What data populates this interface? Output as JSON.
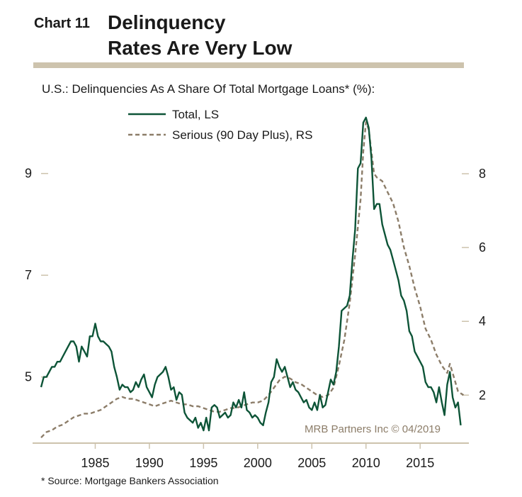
{
  "header": {
    "chart_number": "Chart 11",
    "title_line1": "Delinquency",
    "title_line2": "Rates Are Very Low"
  },
  "subtitle": "U.S.: Delinquencies As A Share Of Total Mortgage Loans* (%):",
  "watermark": "MRB Partners Inc © 04/2019",
  "footnote": "* Source: Mortgage Bankers Association",
  "colors": {
    "total": "#0d5437",
    "serious": "#8c7d69",
    "rule": "#cdc3ad",
    "axis": "#cdc3ad"
  },
  "chart_data": {
    "type": "line",
    "legend": {
      "position": "top-center",
      "entries": [
        "Total, LS",
        "Serious (90 Day Plus), RS"
      ]
    },
    "x_ticks": [
      "1985",
      "1990",
      "1995",
      "2000",
      "2005",
      "2010",
      "2015"
    ],
    "x_range": [
      1980,
      2019.5
    ],
    "y_left": {
      "ticks": [
        "5",
        "7",
        "9"
      ],
      "range": [
        3.7,
        10.25
      ]
    },
    "y_right": {
      "ticks": [
        "2",
        "4",
        "6",
        "8"
      ],
      "range": [
        0.7,
        9.73
      ]
    },
    "grid": false,
    "series": [
      {
        "name": "Total, LS",
        "axis": "left",
        "style": "solid",
        "points": [
          [
            1980.0,
            4.8
          ],
          [
            1980.25,
            5.0
          ],
          [
            1980.5,
            5.0
          ],
          [
            1980.75,
            5.1
          ],
          [
            1981.0,
            5.2
          ],
          [
            1981.25,
            5.2
          ],
          [
            1981.5,
            5.3
          ],
          [
            1981.75,
            5.3
          ],
          [
            1982.0,
            5.4
          ],
          [
            1982.25,
            5.5
          ],
          [
            1982.5,
            5.6
          ],
          [
            1982.75,
            5.7
          ],
          [
            1983.0,
            5.7
          ],
          [
            1983.25,
            5.6
          ],
          [
            1983.5,
            5.3
          ],
          [
            1983.75,
            5.6
          ],
          [
            1984.0,
            5.5
          ],
          [
            1984.25,
            5.4
          ],
          [
            1984.5,
            5.8
          ],
          [
            1984.75,
            5.8
          ],
          [
            1985.0,
            6.05
          ],
          [
            1985.25,
            5.8
          ],
          [
            1985.5,
            5.7
          ],
          [
            1985.75,
            5.7
          ],
          [
            1986.0,
            5.65
          ],
          [
            1986.25,
            5.6
          ],
          [
            1986.5,
            5.5
          ],
          [
            1986.75,
            5.2
          ],
          [
            1987.0,
            5.0
          ],
          [
            1987.25,
            4.75
          ],
          [
            1987.5,
            4.85
          ],
          [
            1987.75,
            4.8
          ],
          [
            1988.0,
            4.8
          ],
          [
            1988.25,
            4.7
          ],
          [
            1988.5,
            4.75
          ],
          [
            1988.75,
            4.9
          ],
          [
            1989.0,
            4.8
          ],
          [
            1989.25,
            4.95
          ],
          [
            1989.5,
            5.05
          ],
          [
            1989.75,
            4.8
          ],
          [
            1990.0,
            4.7
          ],
          [
            1990.25,
            4.6
          ],
          [
            1990.5,
            4.85
          ],
          [
            1990.75,
            5.0
          ],
          [
            1991.0,
            5.05
          ],
          [
            1991.25,
            5.1
          ],
          [
            1991.5,
            5.2
          ],
          [
            1991.75,
            5.0
          ],
          [
            1992.0,
            4.75
          ],
          [
            1992.25,
            4.8
          ],
          [
            1992.5,
            4.55
          ],
          [
            1992.75,
            4.7
          ],
          [
            1993.0,
            4.65
          ],
          [
            1993.25,
            4.3
          ],
          [
            1993.5,
            4.2
          ],
          [
            1993.75,
            4.15
          ],
          [
            1994.0,
            4.1
          ],
          [
            1994.25,
            4.2
          ],
          [
            1994.5,
            4.0
          ],
          [
            1994.75,
            4.1
          ],
          [
            1995.0,
            3.95
          ],
          [
            1995.25,
            4.2
          ],
          [
            1995.5,
            3.95
          ],
          [
            1995.75,
            4.4
          ],
          [
            1996.0,
            4.45
          ],
          [
            1996.25,
            4.4
          ],
          [
            1996.5,
            4.2
          ],
          [
            1996.75,
            4.25
          ],
          [
            1997.0,
            4.3
          ],
          [
            1997.25,
            4.2
          ],
          [
            1997.5,
            4.25
          ],
          [
            1997.75,
            4.5
          ],
          [
            1998.0,
            4.4
          ],
          [
            1998.25,
            4.55
          ],
          [
            1998.5,
            4.4
          ],
          [
            1998.75,
            4.7
          ],
          [
            1999.0,
            4.35
          ],
          [
            1999.25,
            4.3
          ],
          [
            1999.5,
            4.2
          ],
          [
            1999.75,
            4.25
          ],
          [
            2000.0,
            4.2
          ],
          [
            2000.25,
            4.1
          ],
          [
            2000.5,
            4.05
          ],
          [
            2000.75,
            4.3
          ],
          [
            2001.0,
            4.5
          ],
          [
            2001.25,
            4.9
          ],
          [
            2001.5,
            5.0
          ],
          [
            2001.75,
            5.35
          ],
          [
            2002.0,
            5.2
          ],
          [
            2002.25,
            5.1
          ],
          [
            2002.5,
            5.2
          ],
          [
            2002.75,
            5.0
          ],
          [
            2003.0,
            4.8
          ],
          [
            2003.25,
            4.9
          ],
          [
            2003.5,
            4.75
          ],
          [
            2003.75,
            4.7
          ],
          [
            2004.0,
            4.6
          ],
          [
            2004.25,
            4.5
          ],
          [
            2004.5,
            4.55
          ],
          [
            2004.75,
            4.4
          ],
          [
            2005.0,
            4.35
          ],
          [
            2005.25,
            4.5
          ],
          [
            2005.5,
            4.35
          ],
          [
            2005.75,
            4.65
          ],
          [
            2006.0,
            4.4
          ],
          [
            2006.25,
            4.45
          ],
          [
            2006.5,
            4.7
          ],
          [
            2006.75,
            4.95
          ],
          [
            2007.0,
            4.85
          ],
          [
            2007.25,
            5.1
          ],
          [
            2007.5,
            5.6
          ],
          [
            2007.75,
            6.3
          ],
          [
            2008.0,
            6.35
          ],
          [
            2008.25,
            6.4
          ],
          [
            2008.5,
            6.6
          ],
          [
            2008.75,
            7.3
          ],
          [
            2009.0,
            7.9
          ],
          [
            2009.25,
            9.1
          ],
          [
            2009.5,
            9.2
          ],
          [
            2009.75,
            10.0
          ],
          [
            2010.0,
            10.1
          ],
          [
            2010.25,
            9.9
          ],
          [
            2010.5,
            9.3
          ],
          [
            2010.75,
            8.3
          ],
          [
            2011.0,
            8.4
          ],
          [
            2011.25,
            8.4
          ],
          [
            2011.5,
            8.0
          ],
          [
            2011.75,
            7.8
          ],
          [
            2012.0,
            7.6
          ],
          [
            2012.25,
            7.5
          ],
          [
            2012.5,
            7.3
          ],
          [
            2012.75,
            7.1
          ],
          [
            2013.0,
            6.9
          ],
          [
            2013.25,
            6.6
          ],
          [
            2013.5,
            6.5
          ],
          [
            2013.75,
            6.3
          ],
          [
            2014.0,
            5.9
          ],
          [
            2014.25,
            5.8
          ],
          [
            2014.5,
            5.5
          ],
          [
            2014.75,
            5.4
          ],
          [
            2015.0,
            5.3
          ],
          [
            2015.25,
            5.2
          ],
          [
            2015.5,
            4.9
          ],
          [
            2015.75,
            4.8
          ],
          [
            2016.0,
            4.8
          ],
          [
            2016.25,
            4.7
          ],
          [
            2016.5,
            4.5
          ],
          [
            2016.75,
            4.8
          ],
          [
            2017.0,
            4.5
          ],
          [
            2017.25,
            4.25
          ],
          [
            2017.5,
            4.85
          ],
          [
            2017.75,
            5.1
          ],
          [
            2018.0,
            4.6
          ],
          [
            2018.25,
            4.4
          ],
          [
            2018.5,
            4.5
          ],
          [
            2018.75,
            4.05
          ]
        ]
      },
      {
        "name": "Serious (90 Day Plus), RS",
        "axis": "right",
        "style": "dashed",
        "points": [
          [
            1980.0,
            0.85
          ],
          [
            1980.5,
            1.0
          ],
          [
            1981.0,
            1.05
          ],
          [
            1981.5,
            1.15
          ],
          [
            1982.0,
            1.2
          ],
          [
            1982.5,
            1.3
          ],
          [
            1983.0,
            1.4
          ],
          [
            1983.5,
            1.45
          ],
          [
            1984.0,
            1.5
          ],
          [
            1984.5,
            1.5
          ],
          [
            1985.0,
            1.55
          ],
          [
            1985.5,
            1.6
          ],
          [
            1986.0,
            1.7
          ],
          [
            1986.5,
            1.8
          ],
          [
            1987.0,
            1.9
          ],
          [
            1987.5,
            1.95
          ],
          [
            1988.0,
            1.9
          ],
          [
            1988.5,
            1.9
          ],
          [
            1989.0,
            1.85
          ],
          [
            1989.5,
            1.8
          ],
          [
            1990.0,
            1.75
          ],
          [
            1990.5,
            1.7
          ],
          [
            1991.0,
            1.75
          ],
          [
            1991.5,
            1.8
          ],
          [
            1992.0,
            1.85
          ],
          [
            1992.5,
            1.8
          ],
          [
            1993.0,
            1.75
          ],
          [
            1993.5,
            1.75
          ],
          [
            1994.0,
            1.7
          ],
          [
            1994.5,
            1.7
          ],
          [
            1995.0,
            1.65
          ],
          [
            1995.5,
            1.6
          ],
          [
            1996.0,
            1.55
          ],
          [
            1996.5,
            1.55
          ],
          [
            1997.0,
            1.6
          ],
          [
            1997.5,
            1.65
          ],
          [
            1998.0,
            1.65
          ],
          [
            1998.5,
            1.7
          ],
          [
            1999.0,
            1.75
          ],
          [
            1999.5,
            1.8
          ],
          [
            2000.0,
            1.8
          ],
          [
            2000.5,
            1.85
          ],
          [
            2001.0,
            2.0
          ],
          [
            2001.5,
            2.2
          ],
          [
            2002.0,
            2.4
          ],
          [
            2002.5,
            2.5
          ],
          [
            2003.0,
            2.45
          ],
          [
            2003.5,
            2.35
          ],
          [
            2004.0,
            2.3
          ],
          [
            2004.5,
            2.2
          ],
          [
            2005.0,
            2.1
          ],
          [
            2005.5,
            2.0
          ],
          [
            2006.0,
            1.95
          ],
          [
            2006.5,
            2.0
          ],
          [
            2007.0,
            2.2
          ],
          [
            2007.5,
            2.8
          ],
          [
            2008.0,
            3.5
          ],
          [
            2008.5,
            4.5
          ],
          [
            2009.0,
            5.8
          ],
          [
            2009.5,
            7.3
          ],
          [
            2009.75,
            8.6
          ],
          [
            2010.0,
            9.4
          ],
          [
            2010.25,
            9.2
          ],
          [
            2010.5,
            8.6
          ],
          [
            2010.75,
            8.0
          ],
          [
            2011.0,
            7.9
          ],
          [
            2011.5,
            7.8
          ],
          [
            2012.0,
            7.5
          ],
          [
            2012.5,
            7.2
          ],
          [
            2013.0,
            6.7
          ],
          [
            2013.5,
            6.0
          ],
          [
            2014.0,
            5.5
          ],
          [
            2014.5,
            4.9
          ],
          [
            2015.0,
            4.4
          ],
          [
            2015.5,
            3.8
          ],
          [
            2016.0,
            3.5
          ],
          [
            2016.5,
            3.1
          ],
          [
            2017.0,
            2.8
          ],
          [
            2017.5,
            2.6
          ],
          [
            2017.75,
            2.85
          ],
          [
            2018.0,
            2.6
          ],
          [
            2018.5,
            2.1
          ],
          [
            2018.75,
            2.05
          ],
          [
            2019.0,
            2.0
          ]
        ]
      }
    ]
  }
}
